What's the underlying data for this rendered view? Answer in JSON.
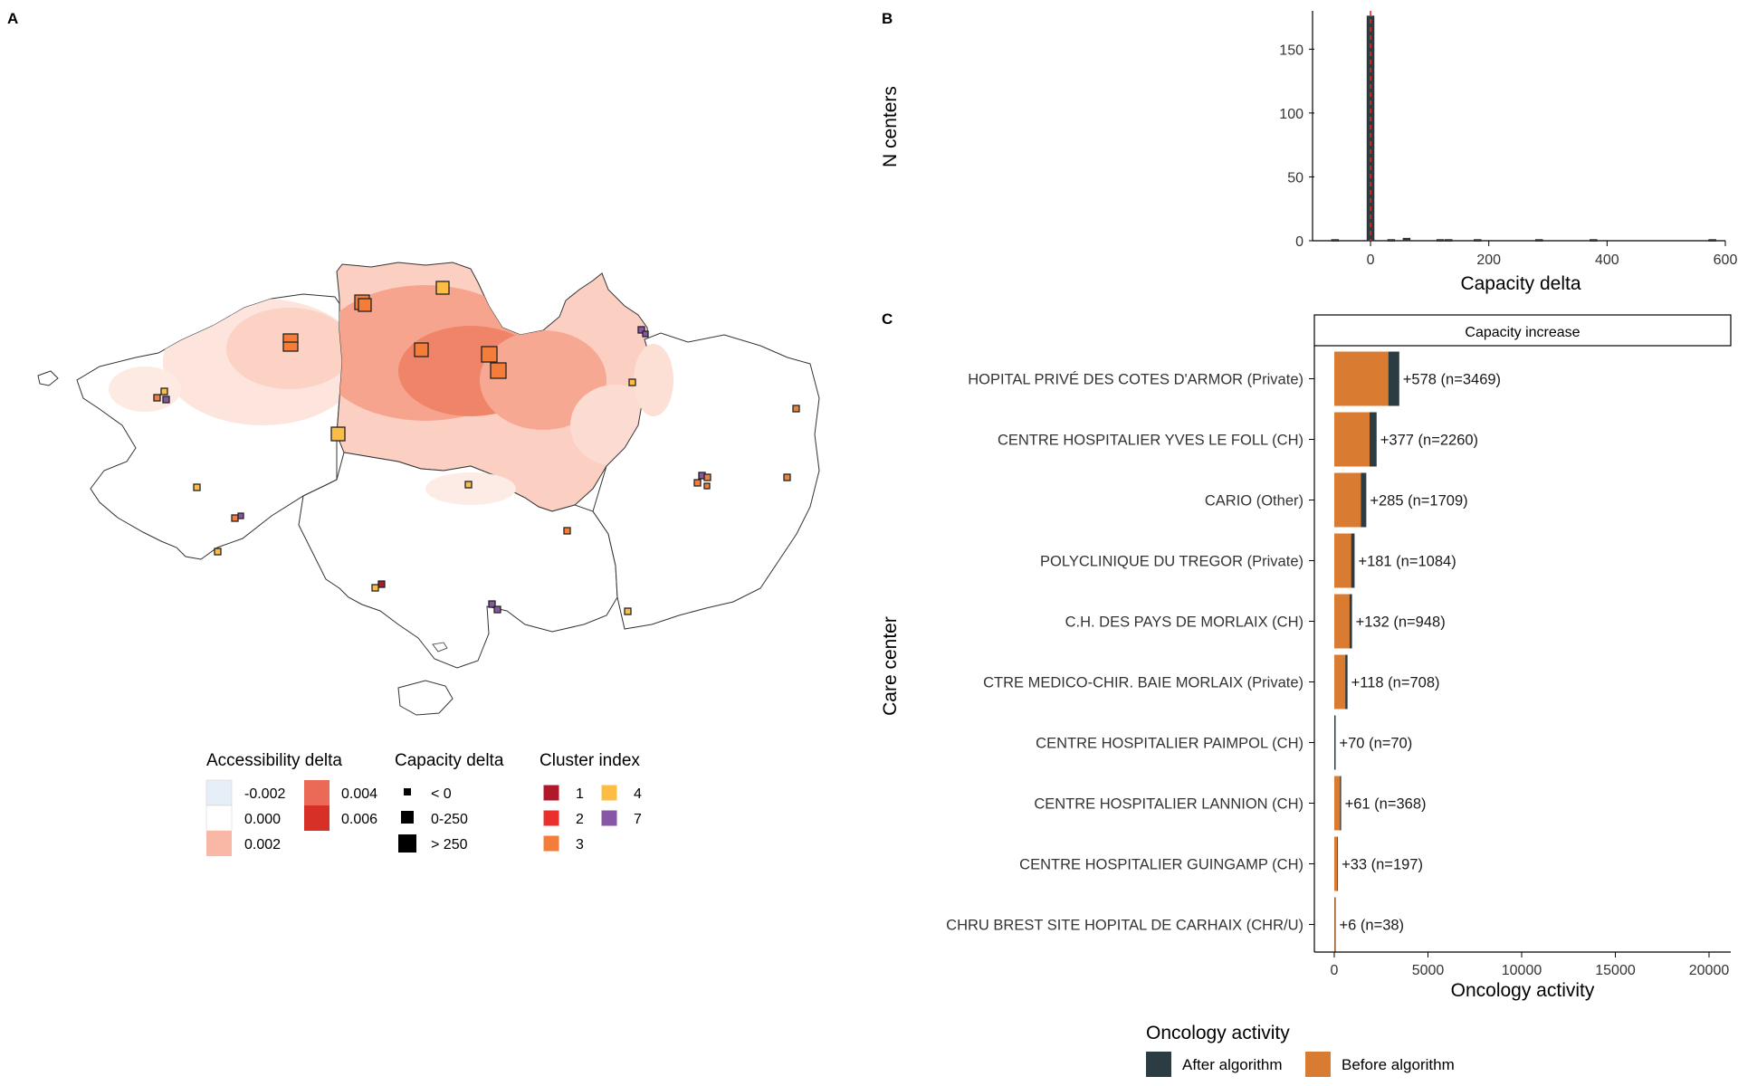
{
  "panels": {
    "a": "A",
    "b": "B",
    "c": "C"
  },
  "map_legend": {
    "accessibility": {
      "title": "Accessibility delta",
      "items": [
        {
          "label": "-0.002",
          "color": "#e6eff7"
        },
        {
          "label": "0.000",
          "color": "#ffffff"
        },
        {
          "label": "0.002",
          "color": "#f9b7a6"
        },
        {
          "label": "0.004",
          "color": "#eb6a57"
        },
        {
          "label": "0.006",
          "color": "#d73027"
        }
      ]
    },
    "capacity": {
      "title": "Capacity delta",
      "items": [
        {
          "label": "< 0"
        },
        {
          "label": "0-250"
        },
        {
          "label": "> 250"
        }
      ]
    },
    "cluster": {
      "title": "Cluster index",
      "items": [
        {
          "label": "1",
          "color": "#b2182b"
        },
        {
          "label": "2",
          "color": "#e9302c"
        },
        {
          "label": "3",
          "color": "#f47d3a"
        },
        {
          "label": "4",
          "color": "#fdbd45"
        },
        {
          "label": "7",
          "color": "#8856a7"
        }
      ]
    }
  },
  "chart_data": [
    {
      "panel": "B",
      "type": "bar",
      "xlabel": "Capacity delta",
      "ylabel": "N centers",
      "xlim": [
        -95,
        600
      ],
      "ylim": [
        0,
        180
      ],
      "xticks": [
        0,
        200,
        400,
        600
      ],
      "yticks": [
        0,
        50,
        100,
        150
      ],
      "bin_width": 12,
      "bins": [
        {
          "x": -60,
          "count": 1
        },
        {
          "x": 0,
          "count": 176
        },
        {
          "x": 35,
          "count": 1
        },
        {
          "x": 61,
          "count": 2
        },
        {
          "x": 118,
          "count": 1
        },
        {
          "x": 132,
          "count": 1
        },
        {
          "x": 181,
          "count": 1
        },
        {
          "x": 285,
          "count": 1
        },
        {
          "x": 377,
          "count": 1
        },
        {
          "x": 578,
          "count": 1
        }
      ],
      "reference_line": {
        "x": 0,
        "color": "#e8291c",
        "style": "dashed"
      }
    },
    {
      "panel": "C",
      "type": "bar",
      "orientation": "horizontal",
      "facet_title": "Capacity increase",
      "xlabel": "Oncology activity",
      "ylabel": "Care center",
      "xlim": [
        0,
        20000
      ],
      "xticks": [
        0,
        5000,
        10000,
        15000,
        20000
      ],
      "legend_title": "Oncology activity",
      "series": [
        {
          "name": "After algorithm",
          "color": "#2b3c42"
        },
        {
          "name": "Before algorithm",
          "color": "#d97b31"
        }
      ],
      "categories": [
        "HOPITAL PRIVÉ DES COTES D'ARMOR (Private)",
        "CENTRE HOSPITALIER YVES LE FOLL (CH)",
        "CARIO (Other)",
        "POLYCLINIQUE DU TREGOR (Private)",
        "C.H. DES PAYS DE MORLAIX (CH)",
        "CTRE MEDICO-CHIR. BAIE MORLAIX (Private)",
        "CENTRE HOSPITALIER PAIMPOL (CH)",
        "CENTRE HOSPITALIER LANNION (CH)",
        "CENTRE HOSPITALIER GUINGAMP (CH)",
        "CHRU BREST SITE HOPITAL DE CARHAIX (CHR/U)"
      ],
      "before": [
        2891,
        1883,
        1424,
        903,
        816,
        590,
        0,
        307,
        164,
        32
      ],
      "after": [
        3469,
        2260,
        1709,
        1084,
        948,
        708,
        70,
        368,
        197,
        38
      ],
      "labels": [
        "+578 (n=3469)",
        "+377 (n=2260)",
        "+285 (n=1709)",
        "+181 (n=1084)",
        "+132 (n=948)",
        "+118 (n=708)",
        "+70 (n=70)",
        "+61 (n=368)",
        "+33 (n=197)",
        "+6 (n=38)"
      ]
    }
  ]
}
